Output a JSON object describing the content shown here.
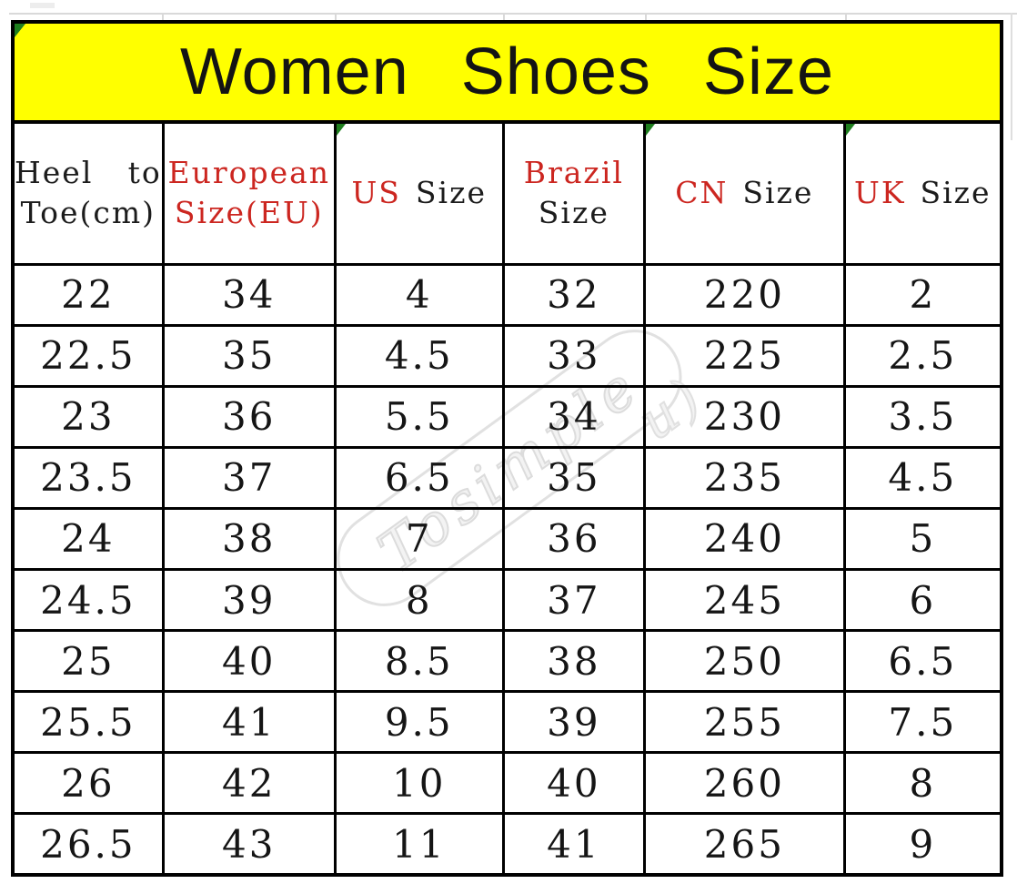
{
  "title": "Women Shoes Size",
  "header": {
    "heel": {
      "word1": "Heel",
      "word2": "to",
      "line2": "Toe(cm)"
    },
    "eu": {
      "line1": "European",
      "line2": "Size(EU)"
    },
    "us": {
      "red": "US",
      "black": "Size"
    },
    "brazil": {
      "red": "Brazil",
      "black": "Size"
    },
    "cn": {
      "red": "CN",
      "black": "Size"
    },
    "uk": {
      "red": "UK",
      "black": "Size"
    }
  },
  "watermark": {
    "text": "Tosimple",
    "flourish": "u)"
  },
  "colors": {
    "banner_bg": "#ffff00",
    "accent_red": "#cc2620",
    "corner_triangle_green": "#1e7e1e",
    "border_black": "#000000",
    "watermark_gray": "#dcdcdc"
  },
  "chart_data": {
    "type": "table",
    "title": "Women Shoes Size",
    "columns": [
      "Heel to Toe(cm)",
      "European Size(EU)",
      "US Size",
      "Brazil Size",
      "CN Size",
      "UK Size"
    ],
    "rows": [
      [
        22,
        34,
        4,
        32,
        220,
        2
      ],
      [
        22.5,
        35,
        4.5,
        33,
        225,
        2.5
      ],
      [
        23,
        36,
        5.5,
        34,
        230,
        3.5
      ],
      [
        23.5,
        37,
        6.5,
        35,
        235,
        4.5
      ],
      [
        24,
        38,
        7,
        36,
        240,
        5
      ],
      [
        24.5,
        39,
        8,
        37,
        245,
        6
      ],
      [
        25,
        40,
        8.5,
        38,
        250,
        6.5
      ],
      [
        25.5,
        41,
        9.5,
        39,
        255,
        7.5
      ],
      [
        26,
        42,
        10,
        40,
        260,
        8
      ],
      [
        26.5,
        43,
        11,
        41,
        265,
        9
      ]
    ],
    "highlight_column": "European Size(EU)"
  }
}
